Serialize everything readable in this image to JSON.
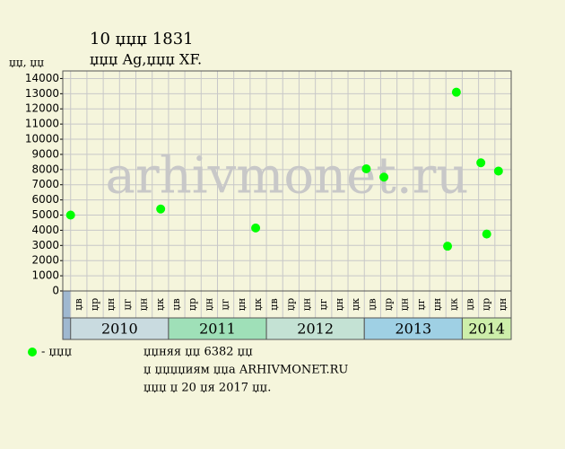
{
  "chart_data": {
    "type": "scatter",
    "title": "10 џџџ 1831",
    "subtitle": "џџџ Ag,џџџ XF.",
    "y_label": "џџ, џџ",
    "watermark": "arhivmonet.ru",
    "series": [
      {
        "name": "- џџџ",
        "color": "#00ff00",
        "x": [
          2010.0,
          2010.92,
          2011.89,
          2013.02,
          2013.2,
          2013.85,
          2013.94,
          2014.19,
          2014.25,
          2014.37
        ],
        "values": [
          5000,
          5400,
          4150,
          8050,
          7500,
          2950,
          13100,
          8450,
          3750,
          7900
        ]
      }
    ],
    "xlim": [
      2009.92,
      2014.5
    ],
    "ylim": [
      0,
      14500
    ],
    "yticks": [
      0,
      1000,
      2000,
      3000,
      4000,
      5000,
      6000,
      7000,
      8000,
      9000,
      10000,
      11000,
      12000,
      13000,
      14000
    ],
    "grid": true,
    "month_labels": [
      "џв",
      "џр",
      "џн",
      "џг",
      "џн",
      "џк",
      "џв",
      "џр",
      "џн",
      "џг",
      "џн",
      "џк",
      "џв",
      "џр",
      "џн",
      "џг",
      "џн",
      "џк",
      "џв",
      "џр",
      "џн",
      "џг",
      "џн",
      "џк",
      "џв",
      "џр",
      "џн"
    ],
    "years": [
      2010,
      2011,
      2012,
      2013,
      2014
    ],
    "year_colors": [
      "#c9dbe0",
      "#9fe0b8",
      "#c4e2d4",
      "#9fd0e4",
      "#cdeeaa"
    ],
    "footer": [
      "џџняя џџ 6382 џџ",
      "џ џџџџиям џџа ARHIVMONET.RU",
      "џџџ џ 20 џя 2017 џџ."
    ]
  }
}
